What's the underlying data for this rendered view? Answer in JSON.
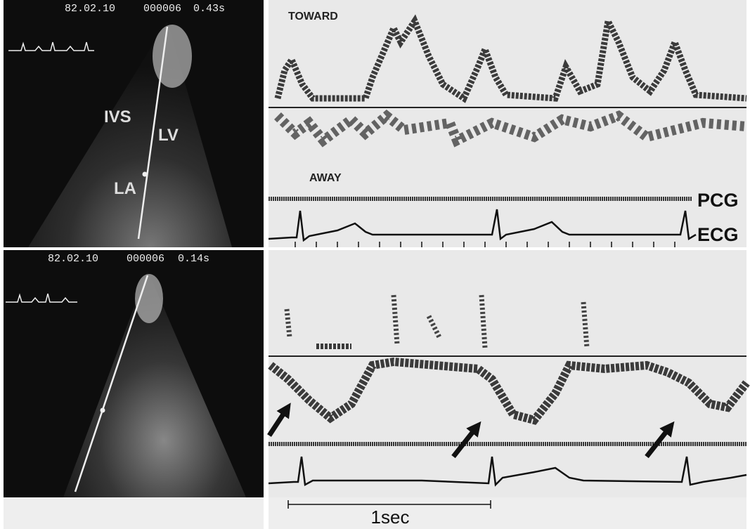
{
  "top_panel": {
    "echo": {
      "date": "82.02.10",
      "frame": "000006",
      "time": "0.43s",
      "labels": [
        "IVS",
        "LV",
        "LA"
      ]
    },
    "doppler": {
      "toward": "TOWARD",
      "away": "AWAY",
      "traces": [
        "PCG",
        "ECG"
      ]
    }
  },
  "bottom_panel": {
    "echo": {
      "date": "82.02.10",
      "frame": "000006",
      "time": "0.14s"
    }
  },
  "scale_bar": {
    "label": "1sec"
  }
}
